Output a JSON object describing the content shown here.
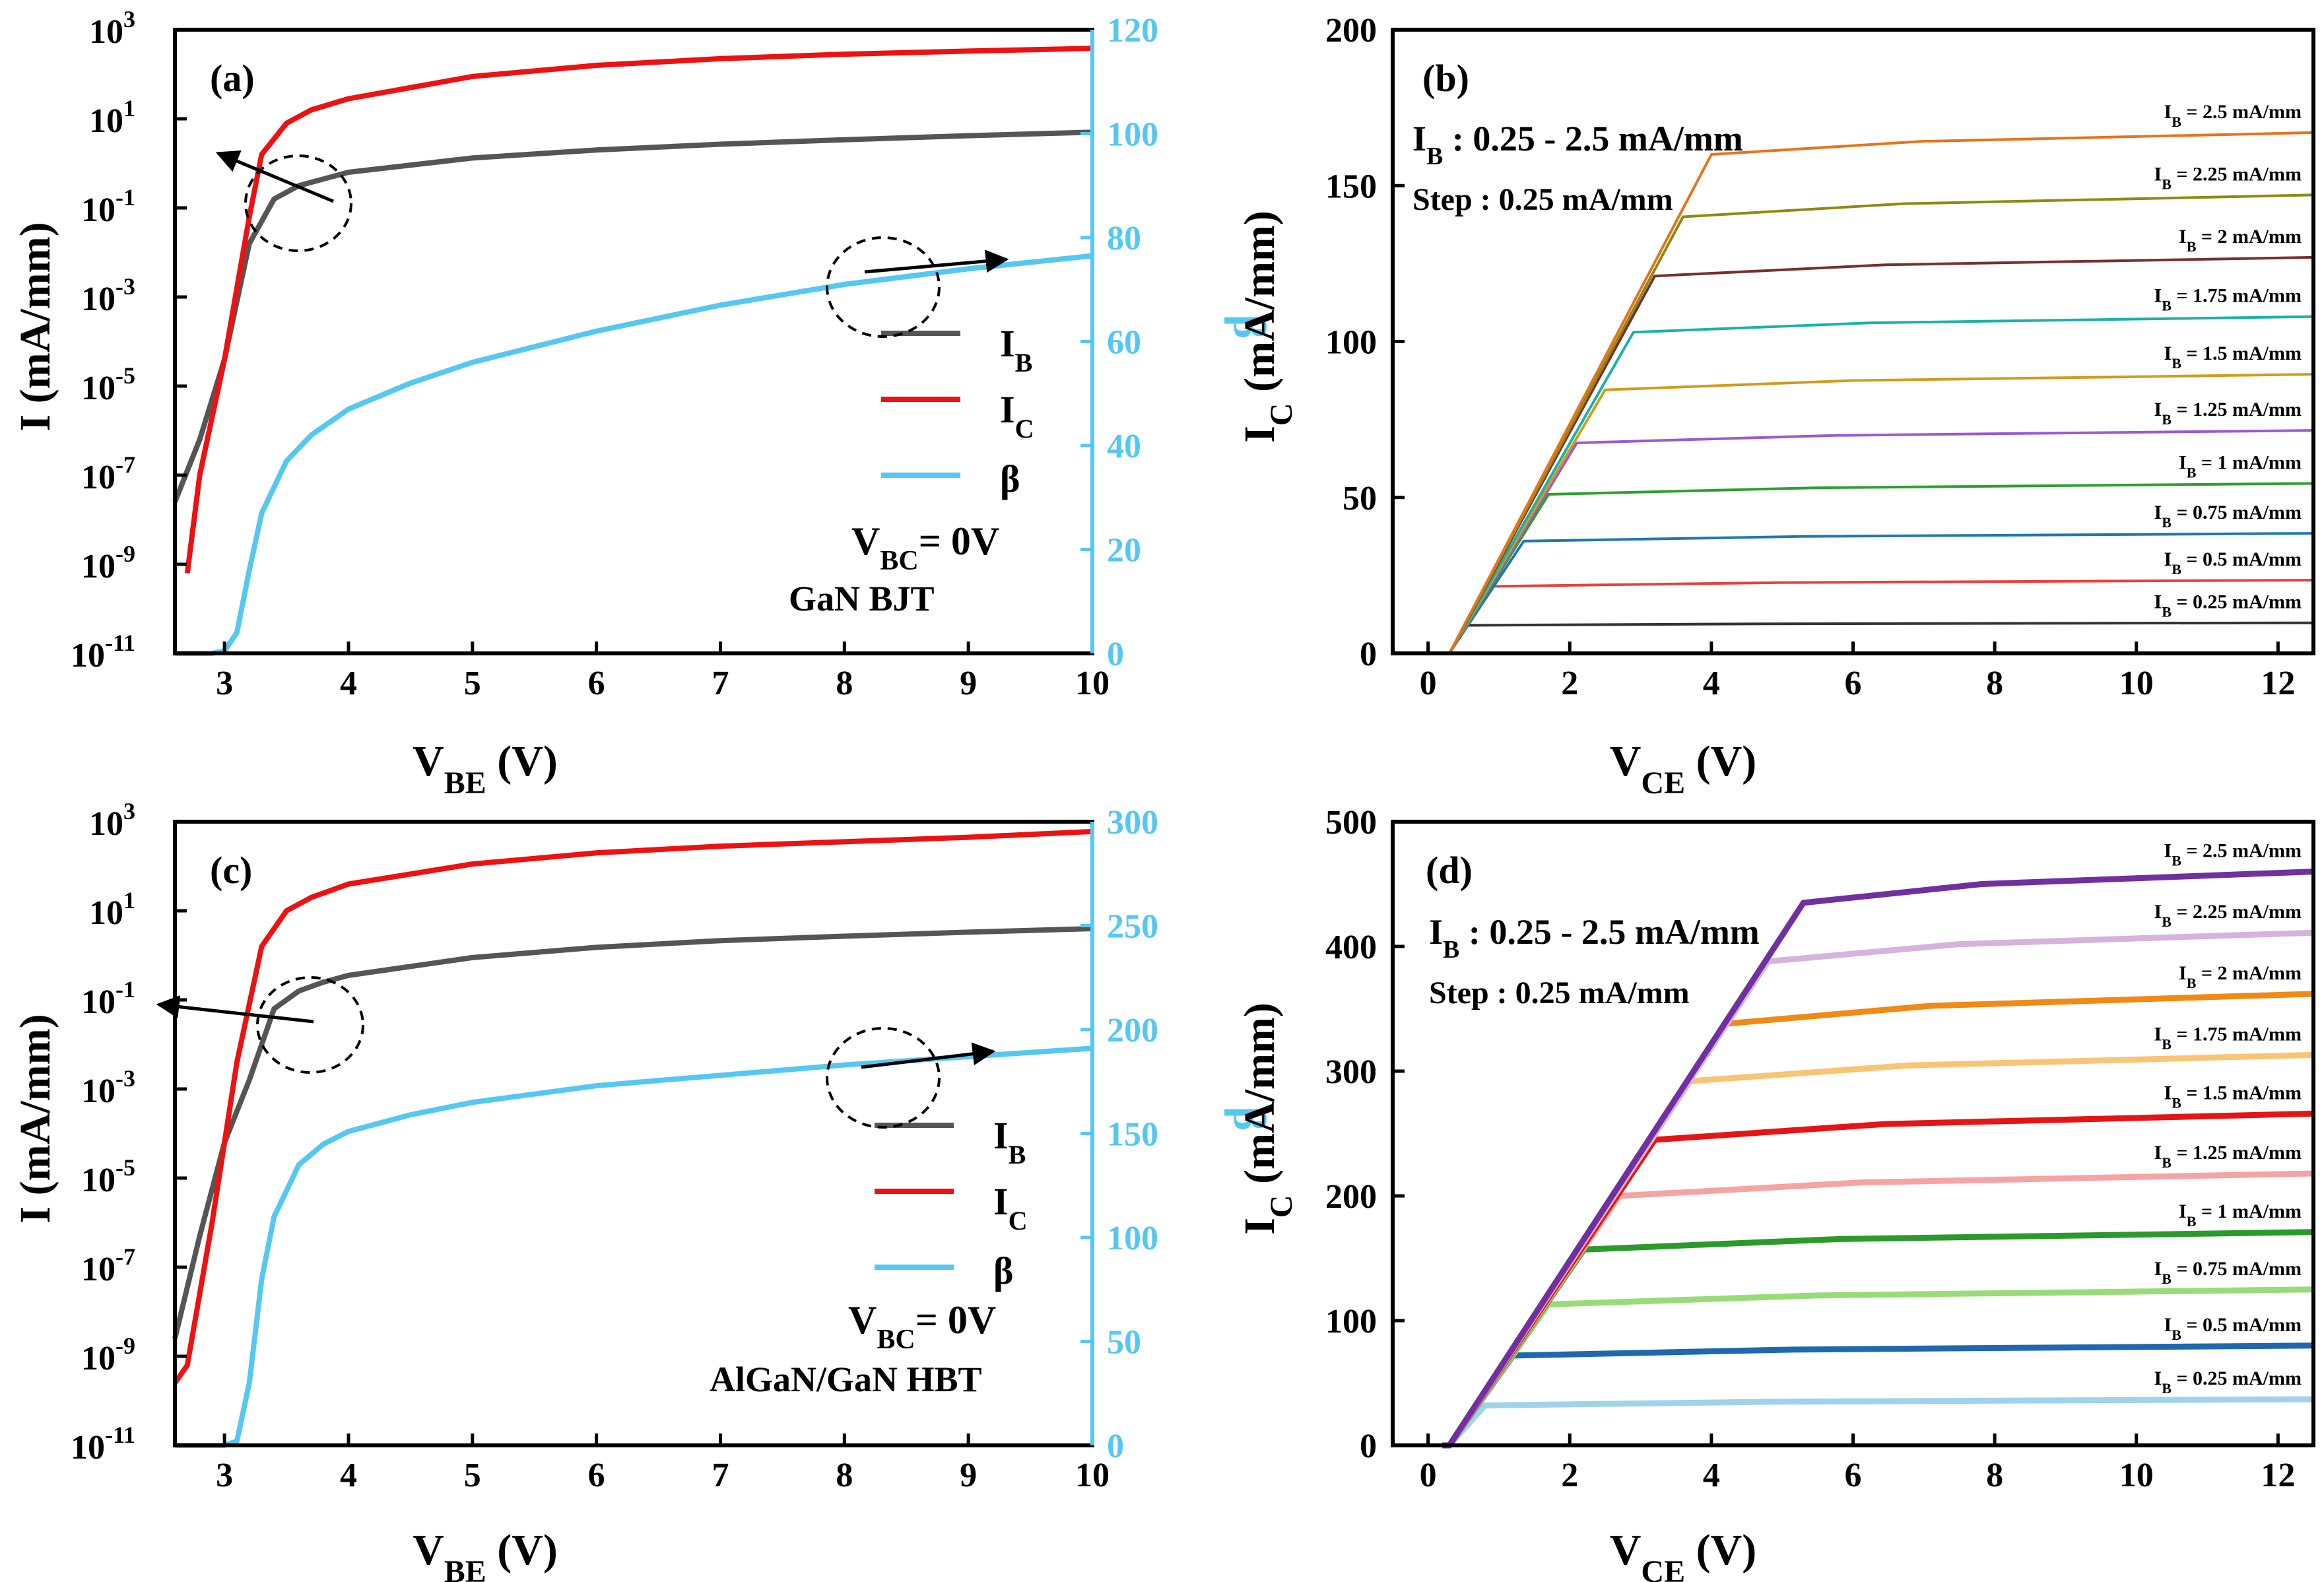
{
  "colors": {
    "IB": "#555555",
    "IC": "#ee1111",
    "beta": "#55c8f2",
    "b_curves": [
      "#333333",
      "#e8403c",
      "#1f77b4",
      "#2ca02c",
      "#9b59d6",
      "#d49a1a",
      "#17b3a8",
      "#7a2e2e",
      "#8b8b12",
      "#e8731a"
    ],
    "d_curves": [
      "#9fd3ea",
      "#1f68b0",
      "#98dc7a",
      "#2a9a2a",
      "#f7a3a3",
      "#e51515",
      "#f9c574",
      "#f08a14",
      "#d6b3dc",
      "#7030a0"
    ]
  },
  "chart_data": [
    {
      "id": "a",
      "type": "line",
      "panel_label": "(a)",
      "xlabel": "V_BE (V)",
      "ylabel": "I (mA/mm)",
      "y2label": "β",
      "xlim": [
        2.6,
        10
      ],
      "ylim_log10": [
        -11,
        3
      ],
      "y2lim": [
        0,
        120
      ],
      "xticks": [
        "3",
        "4",
        "5",
        "6",
        "7",
        "8",
        "9",
        "10"
      ],
      "ytick_exponents": [
        "3",
        "1",
        "-1",
        "-3",
        "-5",
        "-7",
        "-9",
        "-11"
      ],
      "y2ticks": [
        "0",
        "20",
        "40",
        "60",
        "80",
        "100",
        "120"
      ],
      "legend": [
        "I_B",
        "I_C",
        "β"
      ],
      "annotations": [
        "V_BC= 0V",
        "GaN BJT"
      ],
      "series": [
        {
          "name": "I_B",
          "axis": "left",
          "x": [
            2.6,
            2.8,
            3.0,
            3.2,
            3.4,
            3.6,
            4.0,
            5.0,
            6.0,
            7.0,
            8.0,
            9.0,
            10.0
          ],
          "log10y": [
            -7.6,
            -6.2,
            -4.4,
            -1.8,
            -0.8,
            -0.5,
            -0.2,
            0.12,
            0.3,
            0.43,
            0.53,
            0.62,
            0.7
          ]
        },
        {
          "name": "I_C",
          "axis": "left",
          "x": [
            2.7,
            2.8,
            3.0,
            3.2,
            3.3,
            3.5,
            3.7,
            4.0,
            5.0,
            6.0,
            7.0,
            8.0,
            9.0,
            10.0
          ],
          "log10y": [
            -9.2,
            -7.0,
            -4.4,
            -1.2,
            0.2,
            0.9,
            1.2,
            1.45,
            1.95,
            2.2,
            2.35,
            2.45,
            2.52,
            2.58
          ]
        },
        {
          "name": "β",
          "axis": "right",
          "x": [
            2.6,
            2.9,
            3.0,
            3.1,
            3.2,
            3.3,
            3.5,
            3.7,
            4.0,
            4.5,
            5.0,
            6.0,
            7.0,
            8.0,
            9.0,
            10.0
          ],
          "y": [
            0,
            0,
            0.5,
            4,
            16,
            27,
            37,
            42,
            47,
            52,
            56,
            62,
            67,
            71,
            74,
            76.5
          ]
        }
      ]
    },
    {
      "id": "b",
      "type": "line",
      "panel_label": "(b)",
      "xlabel": "V_CE (V)",
      "ylabel": "I_C (mA/mm)",
      "xlim": [
        -0.5,
        12.5
      ],
      "ylim": [
        0,
        200
      ],
      "xticks": [
        "0",
        "2",
        "4",
        "6",
        "8",
        "10",
        "12"
      ],
      "yticks": [
        "0",
        "50",
        "100",
        "150",
        "200"
      ],
      "annotations": [
        "I_B : 0.25 - 2.5 mA/mm",
        "Step : 0.25 mA/mm"
      ],
      "series": [
        {
          "name": "I_B = 0.25 mA/mm",
          "knee_v": 0.55,
          "sat": 9.0,
          "end": 9.8
        },
        {
          "name": "I_B = 0.5 mA/mm",
          "knee_v": 0.9,
          "sat": 21.5,
          "end": 23.5
        },
        {
          "name": "I_B = 0.75 mA/mm",
          "knee_v": 1.35,
          "sat": 36.0,
          "end": 38.5
        },
        {
          "name": "I_B = 1 mA/mm",
          "knee_v": 1.7,
          "sat": 51.0,
          "end": 54.5
        },
        {
          "name": "I_B = 1.25 mA/mm",
          "knee_v": 2.1,
          "sat": 67.5,
          "end": 71.5
        },
        {
          "name": "I_B = 1.5 mA/mm",
          "knee_v": 2.5,
          "sat": 84.5,
          "end": 89.5
        },
        {
          "name": "I_B = 1.75 mA/mm",
          "knee_v": 2.9,
          "sat": 103.0,
          "end": 108.0
        },
        {
          "name": "I_B = 2 mA/mm",
          "knee_v": 3.2,
          "sat": 121.0,
          "end": 127.0
        },
        {
          "name": "I_B = 2.25 mA/mm",
          "knee_v": 3.6,
          "sat": 140.0,
          "end": 147.0
        },
        {
          "name": "I_B = 2.5 mA/mm",
          "knee_v": 4.0,
          "sat": 160.0,
          "end": 167.0
        }
      ]
    },
    {
      "id": "c",
      "type": "line",
      "panel_label": "(c)",
      "xlabel": "V_BE (V)",
      "ylabel": "I (mA/mm)",
      "y2label": "β",
      "xlim": [
        2.6,
        10
      ],
      "ylim_log10": [
        -11,
        3
      ],
      "y2lim": [
        0,
        300
      ],
      "xticks": [
        "3",
        "4",
        "5",
        "6",
        "7",
        "8",
        "9",
        "10"
      ],
      "ytick_exponents": [
        "3",
        "1",
        "-1",
        "-3",
        "-5",
        "-7",
        "-9",
        "-11"
      ],
      "y2ticks": [
        "0",
        "50",
        "100",
        "150",
        "200",
        "250",
        "300"
      ],
      "legend": [
        "I_B",
        "I_C",
        "β"
      ],
      "annotations": [
        "V_BC= 0V",
        "AlGaN/GaN HBT"
      ],
      "series": [
        {
          "name": "I_B",
          "axis": "left",
          "x": [
            2.6,
            2.8,
            3.0,
            3.2,
            3.4,
            3.6,
            3.8,
            4.0,
            5.0,
            6.0,
            7.0,
            8.0,
            9.0,
            10.0
          ],
          "log10y": [
            -8.6,
            -6.3,
            -4.2,
            -2.8,
            -1.2,
            -0.8,
            -0.6,
            -0.45,
            -0.05,
            0.18,
            0.33,
            0.43,
            0.52,
            0.6
          ]
        },
        {
          "name": "I_C",
          "axis": "left",
          "x": [
            2.6,
            2.7,
            2.9,
            3.1,
            3.3,
            3.5,
            3.7,
            4.0,
            5.0,
            6.0,
            7.0,
            8.0,
            9.0,
            10.0
          ],
          "log10y": [
            -9.6,
            -9.2,
            -6.0,
            -2.4,
            0.2,
            1.0,
            1.3,
            1.6,
            2.05,
            2.3,
            2.45,
            2.55,
            2.65,
            2.78
          ]
        },
        {
          "name": "β",
          "axis": "right",
          "x": [
            2.6,
            3.0,
            3.1,
            3.2,
            3.3,
            3.4,
            3.6,
            3.8,
            4.0,
            4.5,
            5.0,
            6.0,
            7.0,
            8.0,
            9.0,
            10.0
          ],
          "y": [
            0,
            0,
            2,
            30,
            80,
            110,
            135,
            145,
            151,
            159,
            165,
            173,
            178,
            183,
            187,
            191
          ]
        }
      ]
    },
    {
      "id": "d",
      "type": "line",
      "panel_label": "(d)",
      "xlabel": "V_CE (V)",
      "ylabel": "I_C (mA/mm)",
      "xlim": [
        -0.5,
        12.5
      ],
      "ylim": [
        0,
        500
      ],
      "xticks": [
        "0",
        "2",
        "4",
        "6",
        "8",
        "10",
        "12"
      ],
      "yticks": [
        "0",
        "100",
        "200",
        "300",
        "400",
        "500"
      ],
      "annotations": [
        "I_B : 0.25 - 2.5 mA/mm",
        "Step : 0.25 mA/mm"
      ],
      "series": [
        {
          "name": "I_B = 0.25 mA/mm",
          "knee_v": 0.8,
          "sat": 32,
          "end": 37
        },
        {
          "name": "I_B = 0.5 mA/mm",
          "knee_v": 1.2,
          "sat": 72,
          "end": 80
        },
        {
          "name": "I_B = 0.75 mA/mm",
          "knee_v": 1.7,
          "sat": 113,
          "end": 125
        },
        {
          "name": "I_B = 1 mA/mm",
          "knee_v": 2.2,
          "sat": 157,
          "end": 171
        },
        {
          "name": "I_B = 1.25 mA/mm",
          "knee_v": 2.7,
          "sat": 200,
          "end": 218
        },
        {
          "name": "I_B = 1.5 mA/mm",
          "knee_v": 3.2,
          "sat": 245,
          "end": 266
        },
        {
          "name": "I_B = 1.75 mA/mm",
          "knee_v": 3.7,
          "sat": 292,
          "end": 313
        },
        {
          "name": "I_B = 2 mA/mm",
          "knee_v": 4.2,
          "sat": 338,
          "end": 362
        },
        {
          "name": "I_B = 2.25 mA/mm",
          "knee_v": 4.8,
          "sat": 388,
          "end": 411
        },
        {
          "name": "I_B = 2.5 mA/mm",
          "knee_v": 5.3,
          "sat": 435,
          "end": 460
        }
      ]
    }
  ]
}
